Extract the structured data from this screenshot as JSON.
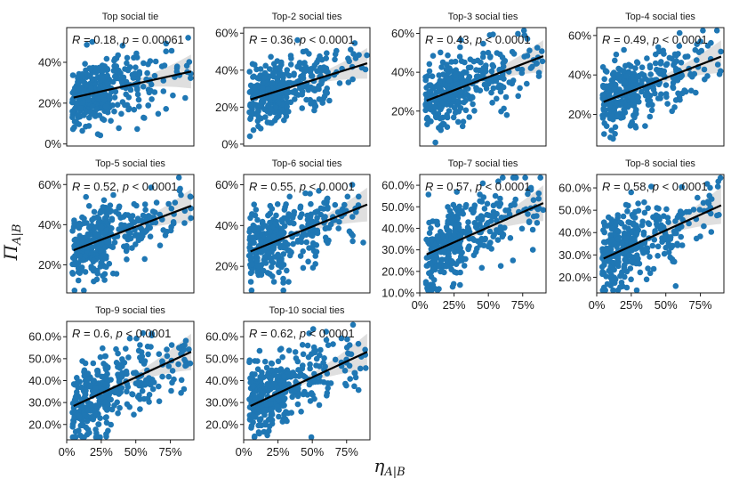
{
  "chart_data": {
    "type": "scatter",
    "xlabel": "η_A|B",
    "ylabel": "Π_A|B",
    "xlabel_main": "η",
    "xlabel_sub": "A|B",
    "ylabel_main": "Π",
    "ylabel_sub": "A|B",
    "point_color": "#1f77b4",
    "fit_color": "#000000",
    "ribbon_color": "#d9d9d9",
    "x_range": [
      0,
      0.92
    ],
    "x_ticks": [
      0,
      0.25,
      0.5,
      0.75
    ],
    "x_tick_labels": [
      "0%",
      "25%",
      "50%",
      "75%"
    ],
    "n_points_per_panel": 350,
    "panels": [
      {
        "title": "Top social tie",
        "R": "0.18",
        "p_op": "=",
        "p": "0.00061",
        "ylim": [
          -0.01,
          0.57
        ],
        "y_ticks": [
          0,
          0.2,
          0.4
        ],
        "y_tick_labels": [
          "0%",
          "20%",
          "40%"
        ],
        "fit": {
          "intercept": 0.22,
          "slope": 0.15
        }
      },
      {
        "title": "Top-2 social ties",
        "R": "0.36",
        "p_op": "<",
        "p": "0.0001",
        "ylim": [
          -0.01,
          0.63
        ],
        "y_ticks": [
          0,
          0.2,
          0.4,
          0.6
        ],
        "y_tick_labels": [
          "0%",
          "20%",
          "40%",
          "60%"
        ],
        "fit": {
          "intercept": 0.23,
          "slope": 0.23
        }
      },
      {
        "title": "Top-3 social ties",
        "R": "0.43",
        "p_op": "<",
        "p": "0.0001",
        "ylim": [
          0.02,
          0.63
        ],
        "y_ticks": [
          0,
          0.2,
          0.4,
          0.6
        ],
        "y_tick_labels": [
          "0%",
          "20%",
          "40%",
          "60%"
        ],
        "fit": {
          "intercept": 0.24,
          "slope": 0.27
        }
      },
      {
        "title": "Top-4 social ties",
        "R": "0.49",
        "p_op": "<",
        "p": "0.0001",
        "ylim": [
          0.04,
          0.64
        ],
        "y_ticks": [
          0.2,
          0.4,
          0.6
        ],
        "y_tick_labels": [
          "20%",
          "40%",
          "60%"
        ],
        "fit": {
          "intercept": 0.25,
          "slope": 0.27
        }
      },
      {
        "title": "Top-5 social ties",
        "R": "0.52",
        "p_op": "<",
        "p": "0.0001",
        "ylim": [
          0.06,
          0.65
        ],
        "y_ticks": [
          0.2,
          0.4,
          0.6
        ],
        "y_tick_labels": [
          "20%",
          "40%",
          "60%"
        ],
        "fit": {
          "intercept": 0.26,
          "slope": 0.26
        }
      },
      {
        "title": "Top-6 social ties",
        "R": "0.55",
        "p_op": "<",
        "p": "0.0001",
        "ylim": [
          0.07,
          0.65
        ],
        "y_ticks": [
          0.2,
          0.4,
          0.6
        ],
        "y_tick_labels": [
          "20%",
          "40%",
          "60%"
        ],
        "fit": {
          "intercept": 0.26,
          "slope": 0.27
        }
      },
      {
        "title": "Top-7 social ties",
        "R": "0.57",
        "p_op": "<",
        "p": "0.0001",
        "ylim": [
          0.1,
          0.65
        ],
        "y_ticks": [
          0.1,
          0.2,
          0.3,
          0.4,
          0.5,
          0.6
        ],
        "y_tick_labels": [
          "10.0%",
          "20.0%",
          "30.0%",
          "40.0%",
          "50.0%",
          "60.0%"
        ],
        "fit": {
          "intercept": 0.265,
          "slope": 0.28
        }
      },
      {
        "title": "Top-8 social ties",
        "R": "0.58",
        "p_op": "<",
        "p": "0.0001",
        "ylim": [
          0.13,
          0.66
        ],
        "y_ticks": [
          0.2,
          0.3,
          0.4,
          0.5,
          0.6
        ],
        "y_tick_labels": [
          "20.0%",
          "30.0%",
          "40.0%",
          "50.0%",
          "60.0%"
        ],
        "fit": {
          "intercept": 0.27,
          "slope": 0.28
        }
      },
      {
        "title": "Top-9 social ties",
        "R": "0.6",
        "p_op": "<",
        "p": "0.0001",
        "ylim": [
          0.13,
          0.67
        ],
        "y_ticks": [
          0.2,
          0.3,
          0.4,
          0.5,
          0.6
        ],
        "y_tick_labels": [
          "20.0%",
          "30.0%",
          "40.0%",
          "50.0%",
          "60.0%"
        ],
        "fit": {
          "intercept": 0.27,
          "slope": 0.29
        }
      },
      {
        "title": "Top-10 social ties",
        "R": "0.62",
        "p_op": "<",
        "p": "0.0001",
        "ylim": [
          0.13,
          0.67
        ],
        "y_ticks": [
          0.2,
          0.3,
          0.4,
          0.5,
          0.6
        ],
        "y_tick_labels": [
          "20.0%",
          "30.0%",
          "40.0%",
          "50.0%",
          "60.0%"
        ],
        "fit": {
          "intercept": 0.27,
          "slope": 0.29
        }
      }
    ]
  }
}
